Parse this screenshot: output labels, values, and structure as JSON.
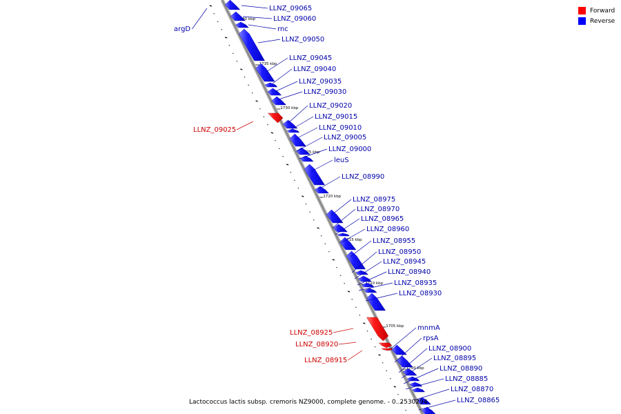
{
  "caption": "Lactococcus lactis subsp. cremoris NZ9000, complete genome. - 0..2530294",
  "legend": [
    {
      "label": "Forward",
      "color": "#ff0000"
    },
    {
      "label": "Reverse",
      "color": "#0000ff"
    }
  ],
  "colors": {
    "forward": "#ff0000",
    "reverse": "#0000ff",
    "backbone": "#888888",
    "forward_label": "#cc0000",
    "reverse_label": "#0000aa"
  },
  "kbp_marks": [
    "1740 kbp",
    "1735 kbp",
    "1730 kbp",
    "1725 kbp",
    "1720 kbp",
    "1715 kbp",
    "1710 kbp",
    "1705 kbp",
    "1700 kbp"
  ],
  "genes": [
    {
      "name": "argD",
      "strand": "reverse"
    },
    {
      "name": "LLNZ_09065",
      "strand": "reverse"
    },
    {
      "name": "LLNZ_09060",
      "strand": "reverse"
    },
    {
      "name": "rnc",
      "strand": "reverse"
    },
    {
      "name": "LLNZ_09050",
      "strand": "reverse"
    },
    {
      "name": "LLNZ_09045",
      "strand": "reverse"
    },
    {
      "name": "LLNZ_09040",
      "strand": "reverse"
    },
    {
      "name": "LLNZ_09035",
      "strand": "reverse"
    },
    {
      "name": "LLNZ_09030",
      "strand": "reverse"
    },
    {
      "name": "LLNZ_09025",
      "strand": "forward"
    },
    {
      "name": "LLNZ_09020",
      "strand": "reverse"
    },
    {
      "name": "LLNZ_09015",
      "strand": "reverse"
    },
    {
      "name": "LLNZ_09010",
      "strand": "reverse"
    },
    {
      "name": "LLNZ_09005",
      "strand": "reverse"
    },
    {
      "name": "LLNZ_09000",
      "strand": "reverse"
    },
    {
      "name": "leuS",
      "strand": "reverse"
    },
    {
      "name": "LLNZ_08990",
      "strand": "reverse"
    },
    {
      "name": "LLNZ_08975",
      "strand": "reverse"
    },
    {
      "name": "LLNZ_08970",
      "strand": "reverse"
    },
    {
      "name": "LLNZ_08965",
      "strand": "reverse"
    },
    {
      "name": "LLNZ_08960",
      "strand": "reverse"
    },
    {
      "name": "LLNZ_08955",
      "strand": "reverse"
    },
    {
      "name": "LLNZ_08950",
      "strand": "reverse"
    },
    {
      "name": "LLNZ_08945",
      "strand": "reverse"
    },
    {
      "name": "LLNZ_08940",
      "strand": "reverse"
    },
    {
      "name": "LLNZ_08935",
      "strand": "reverse"
    },
    {
      "name": "LLNZ_08930",
      "strand": "reverse"
    },
    {
      "name": "LLNZ_08925",
      "strand": "forward"
    },
    {
      "name": "LLNZ_08920",
      "strand": "forward"
    },
    {
      "name": "LLNZ_08915",
      "strand": "forward"
    },
    {
      "name": "mnmA",
      "strand": "reverse"
    },
    {
      "name": "rpsA",
      "strand": "reverse"
    },
    {
      "name": "LLNZ_08900",
      "strand": "reverse"
    },
    {
      "name": "LLNZ_08895",
      "strand": "reverse"
    },
    {
      "name": "LLNZ_08890",
      "strand": "reverse"
    },
    {
      "name": "LLNZ_08885",
      "strand": "reverse"
    },
    {
      "name": "LLNZ_08870",
      "strand": "reverse"
    },
    {
      "name": "LLNZ_08865",
      "strand": "reverse"
    }
  ]
}
